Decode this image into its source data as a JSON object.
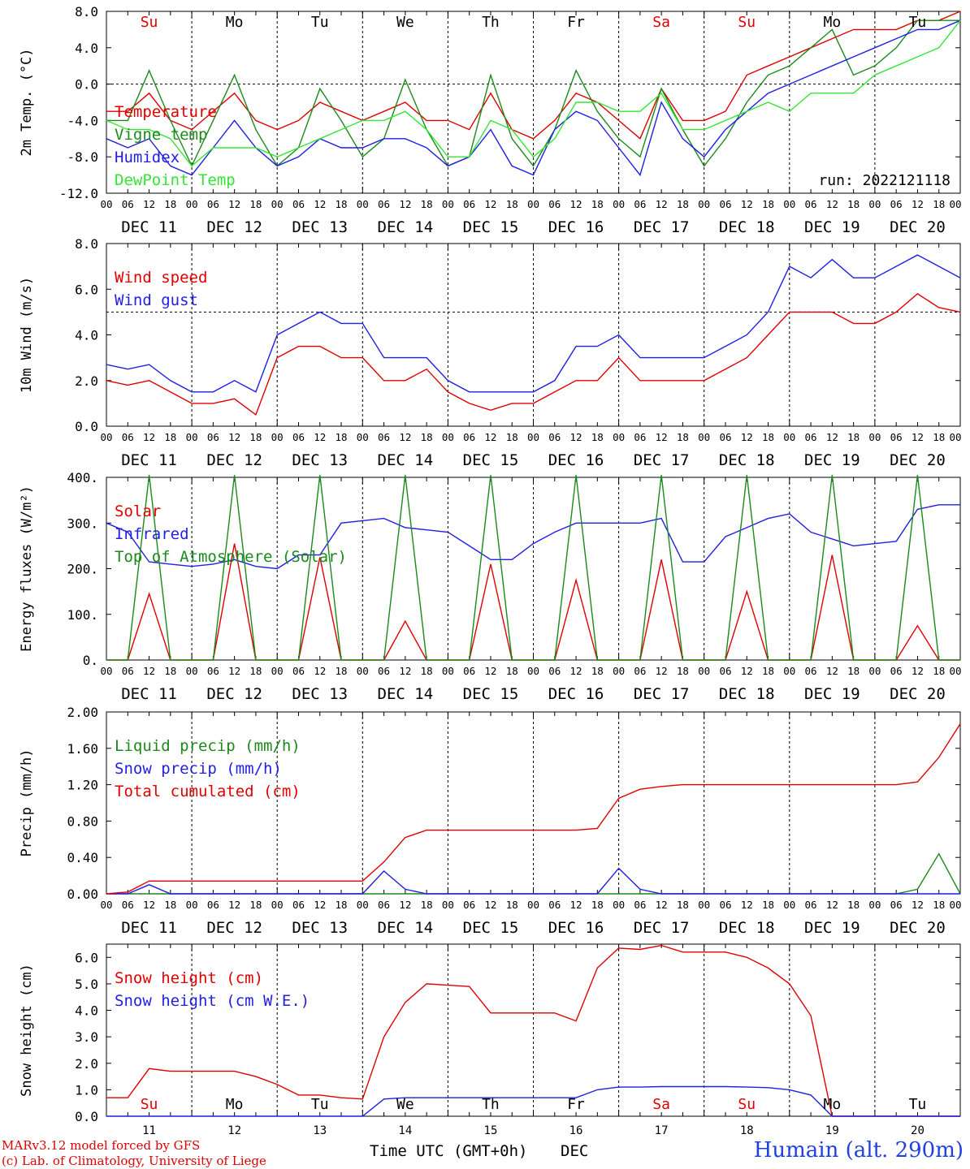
{
  "x_axis": {
    "hour_ticks": [
      "00",
      "06",
      "12",
      "18"
    ],
    "final_tick": "00",
    "days": [
      "DEC 11",
      "DEC 12",
      "DEC 13",
      "DEC 14",
      "DEC 15",
      "DEC 16",
      "DEC 17",
      "DEC 18",
      "DEC 19",
      "DEC 20"
    ],
    "weekdays": [
      "Su",
      "Mo",
      "Tu",
      "We",
      "Th",
      "Fr",
      "Sa",
      "Su",
      "Mo",
      "Tu"
    ],
    "weekend_flags": [
      true,
      false,
      false,
      false,
      false,
      false,
      true,
      true,
      false,
      false
    ],
    "day_numbers": [
      "11",
      "12",
      "13",
      "14",
      "15",
      "16",
      "17",
      "18",
      "19",
      "20"
    ],
    "xlabel": "Time UTC (GMT+0h)",
    "month": "DEC"
  },
  "footer": {
    "credit_line1": "MARv3.12 model forced by GFS",
    "credit_line2": "(c) Lab. of Climatology, University of Liege",
    "station": "Humain (alt. 290m)"
  },
  "colors": {
    "red": "#e00000",
    "green": "#1a8a1a",
    "blue": "#1f1fe6",
    "lightgreen": "#33e633"
  },
  "chart_data": [
    {
      "type": "line",
      "ylabel": "2m Temp. (°C)",
      "ylim": [
        -12,
        8
      ],
      "y_ticks": [
        "8.0",
        "4.0",
        "0.0",
        "-4.0",
        "-8.0",
        "-12.0"
      ],
      "reference_line": 0,
      "run_label": "run: 2022121118",
      "x": [
        0,
        6,
        12,
        18,
        24,
        30,
        36,
        42,
        48,
        54,
        60,
        66,
        72,
        78,
        84,
        90,
        96,
        102,
        108,
        114,
        120,
        126,
        132,
        138,
        144,
        150,
        156,
        162,
        168,
        174,
        180,
        186,
        192,
        198,
        204,
        210,
        216,
        222,
        228,
        234,
        240
      ],
      "series": [
        {
          "name": "Temperature",
          "color": "red",
          "values": [
            -3,
            -3,
            -1,
            -4,
            -5,
            -3,
            -1,
            -4,
            -5,
            -4,
            -2,
            -3,
            -4,
            -3,
            -2,
            -4,
            -4,
            -5,
            -1,
            -5,
            -6,
            -4,
            -1,
            -2,
            -4,
            -6,
            -0.5,
            -4,
            -4,
            -3,
            1,
            2,
            3,
            4,
            5,
            6,
            6,
            6,
            7,
            7,
            8
          ]
        },
        {
          "name": "Vigne temp",
          "color": "green",
          "values": [
            -4,
            -4,
            1.5,
            -4,
            -9,
            -4,
            1,
            -5,
            -9,
            -7,
            -0.5,
            -4,
            -8,
            -6,
            0.5,
            -5,
            -9,
            -8,
            1,
            -6,
            -9,
            -5,
            1.5,
            -3,
            -6,
            -8,
            -0.5,
            -5,
            -9,
            -6,
            -2,
            1,
            2,
            4,
            6,
            1,
            2,
            4,
            7,
            7,
            7
          ]
        },
        {
          "name": "Humidex",
          "color": "blue",
          "values": [
            -6,
            -7,
            -6,
            -9,
            -10,
            -7,
            -4,
            -7,
            -9,
            -8,
            -6,
            -7,
            -7,
            -6,
            -6,
            -7,
            -9,
            -8,
            -5,
            -9,
            -10,
            -5,
            -3,
            -4,
            -7,
            -10,
            -2,
            -6,
            -8,
            -5,
            -3,
            -1,
            0,
            1,
            2,
            3,
            4,
            5,
            6,
            6,
            7
          ]
        },
        {
          "name": "DewPoint Temp",
          "color": "lightgreen",
          "values": [
            -4,
            -5,
            -5,
            -6,
            -9,
            -7,
            -7,
            -7,
            -8,
            -7,
            -6,
            -5,
            -4,
            -4,
            -3,
            -5,
            -8,
            -8,
            -4,
            -5,
            -8,
            -6,
            -2,
            -2,
            -3,
            -3,
            -1,
            -5,
            -5,
            -4,
            -3,
            -2,
            -3,
            -1,
            -1,
            -1,
            1,
            2,
            3,
            4,
            7
          ]
        }
      ]
    },
    {
      "type": "line",
      "ylabel": "10m Wind (m/s)",
      "ylim": [
        0,
        8
      ],
      "y_ticks": [
        "8.0",
        "6.0",
        "4.0",
        "2.0",
        "0.0"
      ],
      "reference_line": 5,
      "x": [
        0,
        6,
        12,
        18,
        24,
        30,
        36,
        42,
        48,
        54,
        60,
        66,
        72,
        78,
        84,
        90,
        96,
        102,
        108,
        114,
        120,
        126,
        132,
        138,
        144,
        150,
        156,
        162,
        168,
        174,
        180,
        186,
        192,
        198,
        204,
        210,
        216,
        222,
        228,
        234,
        240
      ],
      "series": [
        {
          "name": "Wind speed",
          "color": "red",
          "values": [
            2,
            1.8,
            2,
            1.5,
            1,
            1,
            1.2,
            0.5,
            3,
            3.5,
            3.5,
            3,
            3,
            2,
            2,
            2.5,
            1.5,
            1,
            0.7,
            1,
            1,
            1.5,
            2,
            2,
            3,
            2,
            2,
            2,
            2,
            2.5,
            3,
            4,
            5,
            5,
            5,
            4.5,
            4.5,
            5,
            5.8,
            5.2,
            5
          ]
        },
        {
          "name": "Wind gust",
          "color": "blue",
          "values": [
            2.7,
            2.5,
            2.7,
            2,
            1.5,
            1.5,
            2,
            1.5,
            4,
            4.5,
            5,
            4.5,
            4.5,
            3,
            3,
            3,
            2,
            1.5,
            1.5,
            1.5,
            1.5,
            2,
            3.5,
            3.5,
            4,
            3,
            3,
            3,
            3,
            3.5,
            4,
            5,
            7,
            6.5,
            7.3,
            6.5,
            6.5,
            7,
            7.5,
            7,
            6.5
          ]
        }
      ]
    },
    {
      "type": "line",
      "ylabel": "Energy fluxes (W/m²)",
      "ylim": [
        0,
        400
      ],
      "y_ticks": [
        "400.",
        "300.",
        "200.",
        "100.",
        "0."
      ],
      "x": [
        0,
        6,
        12,
        18,
        24,
        30,
        36,
        42,
        48,
        54,
        60,
        66,
        72,
        78,
        84,
        90,
        96,
        102,
        108,
        114,
        120,
        126,
        132,
        138,
        144,
        150,
        156,
        162,
        168,
        174,
        180,
        186,
        192,
        198,
        204,
        210,
        216,
        222,
        228,
        234,
        240
      ],
      "series": [
        {
          "name": "Solar",
          "color": "red",
          "values": [
            0,
            0,
            145,
            0,
            0,
            0,
            255,
            0,
            0,
            0,
            225,
            0,
            0,
            0,
            85,
            0,
            0,
            0,
            210,
            0,
            0,
            0,
            175,
            0,
            0,
            0,
            220,
            0,
            0,
            0,
            150,
            0,
            0,
            0,
            230,
            0,
            0,
            0,
            75,
            0,
            0
          ]
        },
        {
          "name": "Infrared",
          "color": "blue",
          "values": [
            300,
            280,
            215,
            210,
            205,
            210,
            220,
            205,
            200,
            230,
            230,
            300,
            305,
            310,
            290,
            285,
            280,
            250,
            220,
            220,
            255,
            280,
            300,
            300,
            300,
            300,
            310,
            215,
            215,
            270,
            290,
            310,
            320,
            280,
            265,
            250,
            255,
            260,
            330,
            340,
            340
          ]
        },
        {
          "name": "Top of Atmosphere (Solar)",
          "color": "green",
          "values": [
            0,
            0,
            405,
            0,
            0,
            0,
            405,
            0,
            0,
            0,
            405,
            0,
            0,
            0,
            405,
            0,
            0,
            0,
            405,
            0,
            0,
            0,
            405,
            0,
            0,
            0,
            405,
            0,
            0,
            0,
            405,
            0,
            0,
            0,
            405,
            0,
            0,
            0,
            405,
            0,
            0
          ]
        }
      ]
    },
    {
      "type": "line",
      "ylabel": "Precip (mm/h)",
      "ylim": [
        0,
        2
      ],
      "y_ticks": [
        "2.00",
        "1.60",
        "1.20",
        "0.80",
        "0.40",
        "0.00"
      ],
      "x": [
        0,
        6,
        12,
        18,
        24,
        30,
        36,
        42,
        48,
        54,
        60,
        66,
        72,
        78,
        84,
        90,
        96,
        102,
        108,
        114,
        120,
        126,
        132,
        138,
        144,
        150,
        156,
        162,
        168,
        174,
        180,
        186,
        192,
        198,
        204,
        210,
        216,
        222,
        228,
        234,
        240
      ],
      "series": [
        {
          "name": "Liquid precip (mm/h)",
          "color": "green",
          "values": [
            0,
            0,
            0,
            0,
            0,
            0,
            0,
            0,
            0,
            0,
            0,
            0,
            0,
            0,
            0,
            0,
            0,
            0,
            0,
            0,
            0,
            0,
            0,
            0,
            0,
            0,
            0,
            0,
            0,
            0,
            0,
            0,
            0,
            0,
            0,
            0,
            0,
            0,
            0.05,
            0.44,
            0
          ]
        },
        {
          "name": "Snow precip (mm/h)",
          "color": "blue",
          "values": [
            0,
            0,
            0.1,
            0,
            0,
            0,
            0,
            0,
            0,
            0,
            0,
            0,
            0,
            0.25,
            0.05,
            0,
            0,
            0,
            0,
            0,
            0,
            0,
            0,
            0,
            0.28,
            0.05,
            0,
            0,
            0,
            0,
            0,
            0,
            0,
            0,
            0,
            0,
            0,
            0,
            0,
            0,
            0
          ]
        },
        {
          "name": "Total cumulated (cm)",
          "color": "red",
          "values": [
            0,
            0.02,
            0.14,
            0.14,
            0.14,
            0.14,
            0.14,
            0.14,
            0.14,
            0.14,
            0.14,
            0.14,
            0.14,
            0.35,
            0.62,
            0.7,
            0.7,
            0.7,
            0.7,
            0.7,
            0.7,
            0.7,
            0.7,
            0.72,
            1.05,
            1.15,
            1.18,
            1.2,
            1.2,
            1.2,
            1.2,
            1.2,
            1.2,
            1.2,
            1.2,
            1.2,
            1.2,
            1.2,
            1.23,
            1.5,
            1.87
          ]
        }
      ]
    },
    {
      "type": "line",
      "ylabel": "Snow height (cm)",
      "ylim": [
        0,
        6.5
      ],
      "y_ticks": [
        "6.0",
        "5.0",
        "4.0",
        "3.0",
        "2.0",
        "1.0",
        "0.0"
      ],
      "x": [
        0,
        6,
        12,
        18,
        24,
        30,
        36,
        42,
        48,
        54,
        60,
        66,
        72,
        78,
        84,
        90,
        96,
        102,
        108,
        114,
        120,
        126,
        132,
        138,
        144,
        150,
        156,
        162,
        168,
        174,
        180,
        186,
        192,
        198,
        204,
        210,
        216,
        222,
        228,
        234,
        240
      ],
      "series": [
        {
          "name": "Snow height (cm)",
          "color": "red",
          "values": [
            0.7,
            0.7,
            1.8,
            1.7,
            1.7,
            1.7,
            1.7,
            1.5,
            1.2,
            0.8,
            0.8,
            0.7,
            0.65,
            3,
            4.3,
            5,
            4.95,
            4.9,
            3.9,
            3.9,
            3.9,
            3.9,
            3.6,
            5.6,
            6.35,
            6.3,
            6.45,
            6.2,
            6.2,
            6.2,
            6,
            5.6,
            5,
            3.8,
            0,
            0,
            0,
            0,
            0,
            0,
            0
          ]
        },
        {
          "name": "Snow height (cm W.E.)",
          "color": "blue",
          "values": [
            0,
            0,
            0,
            0,
            0,
            0,
            0,
            0,
            0,
            0,
            0,
            0,
            0,
            0.65,
            0.7,
            0.7,
            0.7,
            0.7,
            0.7,
            0.7,
            0.7,
            0.7,
            0.7,
            1,
            1.1,
            1.1,
            1.12,
            1.12,
            1.12,
            1.12,
            1.1,
            1.08,
            1,
            0.8,
            0,
            0,
            0,
            0,
            0,
            0,
            0
          ]
        }
      ]
    }
  ]
}
